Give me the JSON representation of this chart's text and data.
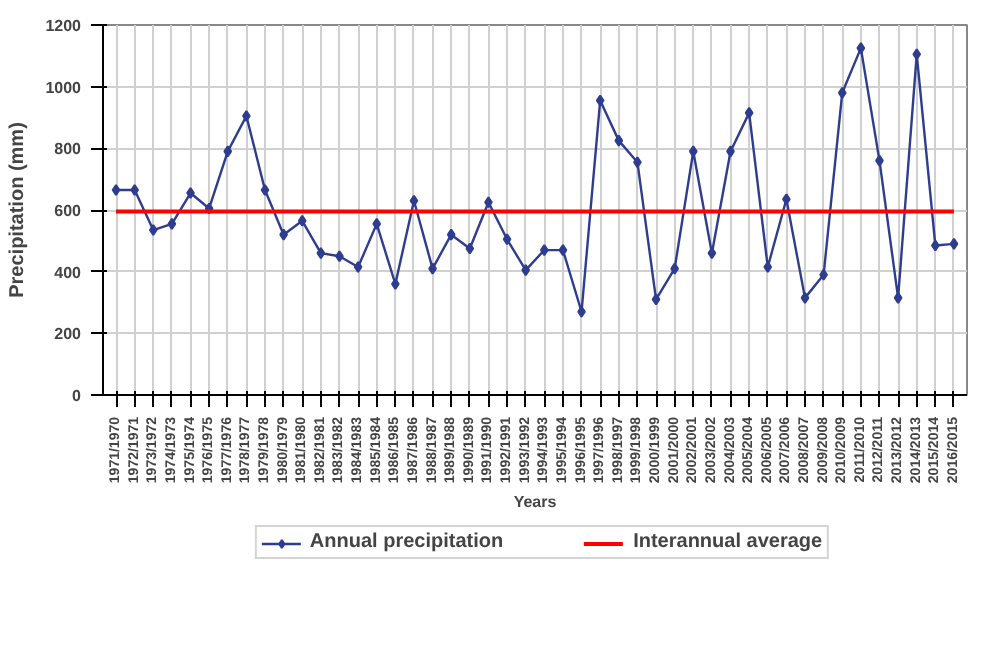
{
  "chart_data": {
    "type": "line",
    "xlabel": "Years",
    "ylabel": "Precipitation (mm)",
    "categories": [
      "1971/1970",
      "1972/1971",
      "1973/1972",
      "1974/1973",
      "1975/1974",
      "1976/1975",
      "1977/1976",
      "1978/1977",
      "1979/1978",
      "1980/1979",
      "1981/1980",
      "1982/1981",
      "1983/1982",
      "1984/1983",
      "1985/1984",
      "1986/1985",
      "1987/1986",
      "1988/1987",
      "1989/1988",
      "1990/1989",
      "1991/1990",
      "1992/1991",
      "1993/1992",
      "1994/1993",
      "1995/1994",
      "1996/1995",
      "1997/1996",
      "1998/1997",
      "1999/1998",
      "2000/1999",
      "2001/2000",
      "2002/2001",
      "2003/2002",
      "2004/2003",
      "2005/2004",
      "2006/2005",
      "2007/2006",
      "2008/2007",
      "2009/2008",
      "2010/2009",
      "2011/2010",
      "2012/2011",
      "2013/2012",
      "2014/2013",
      "2015/2014",
      "2016/2015"
    ],
    "series": [
      {
        "name": "Annual precipitation",
        "color": "#2e3d8f",
        "values": [
          665,
          665,
          535,
          555,
          655,
          605,
          790,
          905,
          665,
          520,
          565,
          460,
          450,
          415,
          555,
          360,
          630,
          410,
          520,
          475,
          625,
          505,
          405,
          470,
          470,
          270,
          955,
          825,
          755,
          310,
          410,
          790,
          460,
          790,
          915,
          415,
          635,
          315,
          390,
          980,
          1125,
          760,
          315,
          1105,
          485,
          490
        ]
      }
    ],
    "ref_lines": [
      {
        "axis": "y",
        "value": 595,
        "label": "Interannual average",
        "color": "#ff0000"
      }
    ],
    "ylim": [
      0,
      1200
    ],
    "yticks": [
      0,
      200,
      400,
      600,
      800,
      1000,
      1200
    ],
    "marker": "diamond",
    "grid": true,
    "legend": "bottom"
  }
}
